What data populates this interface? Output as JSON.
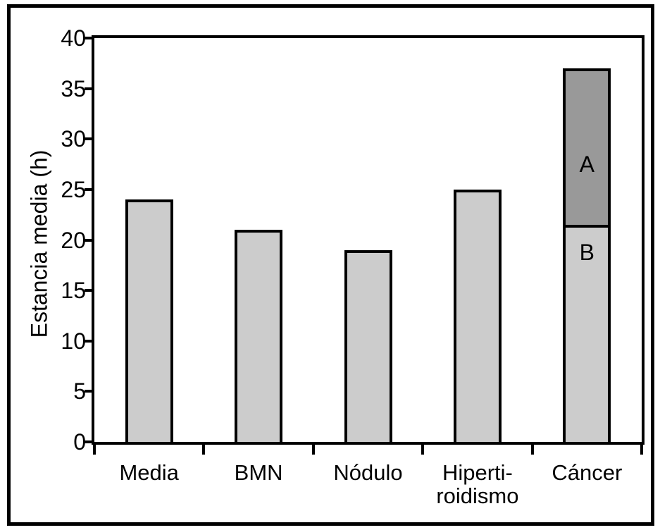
{
  "figure": {
    "background": "#ffffff",
    "border_color": "#000000"
  },
  "chart_data": {
    "type": "bar",
    "title": "",
    "xlabel": "",
    "ylabel": "Estancia media (h)",
    "ylim": [
      0,
      40
    ],
    "yticks": [
      0,
      5,
      10,
      15,
      20,
      25,
      30,
      35,
      40
    ],
    "grid": false,
    "legend": null,
    "bar_colors": {
      "light": "#cccccc",
      "dark": "#999999"
    },
    "axis_color": "#000000",
    "categories": [
      "Media",
      "BMN",
      "Nódulo",
      "Hipertiroidismo",
      "Cáncer"
    ],
    "category_display": [
      [
        "Media"
      ],
      [
        "BMN"
      ],
      [
        "Nódulo"
      ],
      [
        "Hiperti-",
        "roidismo"
      ],
      [
        "Cáncer"
      ]
    ],
    "bars": [
      {
        "category": "Media",
        "total": 24,
        "segments": [
          {
            "value": 24,
            "color": "light"
          }
        ]
      },
      {
        "category": "BMN",
        "total": 21,
        "segments": [
          {
            "value": 21,
            "color": "light"
          }
        ]
      },
      {
        "category": "Nódulo",
        "total": 19,
        "segments": [
          {
            "value": 19,
            "color": "light"
          }
        ]
      },
      {
        "category": "Hipertiroidismo",
        "total": 25,
        "segments": [
          {
            "value": 25,
            "color": "light"
          }
        ]
      },
      {
        "category": "Cáncer",
        "total": 37,
        "segments": [
          {
            "value": 21.5,
            "color": "light",
            "label": "B",
            "label_value_pos": 18.8
          },
          {
            "value": 15.5,
            "color": "dark",
            "label": "A",
            "label_value_pos": 27.5
          }
        ]
      }
    ]
  }
}
